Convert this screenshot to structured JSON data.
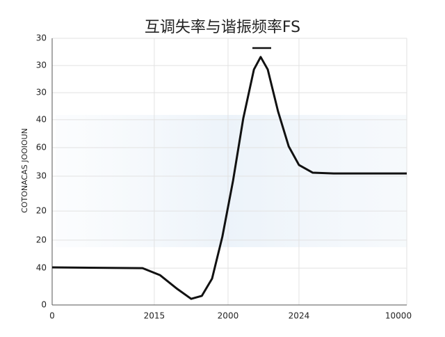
{
  "chart_data": {
    "type": "line",
    "title": "互调失率与谐振频率FS",
    "y_label": "COTONACAS JOOIOUN",
    "xlim": [
      0,
      100
    ],
    "xticks": [
      0,
      {
        "value": 28.8,
        "label": "2015"
      },
      {
        "value": 49.6,
        "label": "2000"
      },
      {
        "value": 69.6,
        "label": "2024"
      },
      {
        "value": 100,
        "label": "10000"
      }
    ],
    "ylim": [
      0,
      100
    ],
    "yticks": [
      0,
      {
        "value": 13.8,
        "label": "40"
      },
      {
        "value": 24.3,
        "label": "20"
      },
      {
        "value": 35.2,
        "label": "20"
      },
      {
        "value": 48.3,
        "label": "30"
      },
      {
        "value": 59,
        "label": "60"
      },
      {
        "value": 69.5,
        "label": "40"
      },
      {
        "value": 79.6,
        "label": "30"
      },
      {
        "value": 89.8,
        "label": "30"
      },
      {
        "value": 100,
        "label": "30"
      }
    ],
    "grid": true,
    "x": [
      0,
      25.5,
      30.4,
      35.3,
      39.2,
      42.2,
      45.1,
      48.0,
      51.0,
      53.9,
      56.9,
      58.8,
      60.8,
      63.7,
      66.7,
      69.6,
      73.5,
      79.4,
      100
    ],
    "series": [
      {
        "color": "#111111",
        "values": [
          14.1,
          13.8,
          11.2,
          6.0,
          2.3,
          3.4,
          9.9,
          25.6,
          46.5,
          70.0,
          88.3,
          93.0,
          88.3,
          72.6,
          59.5,
          52.5,
          49.6,
          49.3,
          49.3
        ]
      }
    ]
  }
}
